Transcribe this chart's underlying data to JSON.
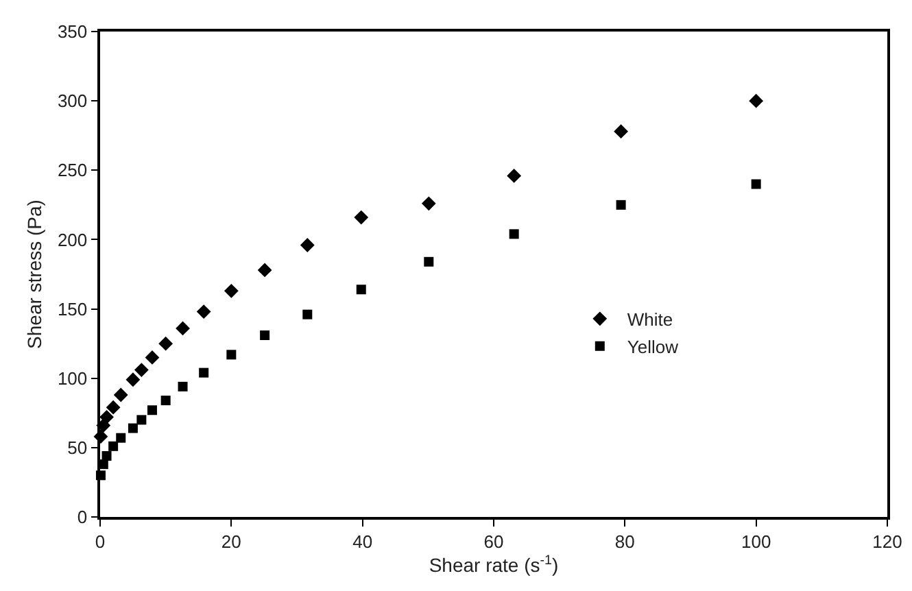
{
  "chart_data": {
    "type": "scatter",
    "xlabel": "Shear rate (s$^{-1}$)",
    "ylabel": "Shear stress (Pa)",
    "x": [
      0.1,
      0.501,
      1,
      2,
      3.16,
      5.01,
      6.31,
      7.94,
      10,
      12.6,
      15.8,
      20,
      25.1,
      31.6,
      39.8,
      50.1,
      63.1,
      79.4,
      100
    ],
    "series": [
      {
        "name": "White",
        "color": "#000000",
        "marker": "diamond",
        "values": [
          58,
          66,
          72,
          79,
          88,
          99,
          106,
          115,
          125,
          136,
          148,
          163,
          178,
          196,
          216,
          226,
          246,
          278,
          300
        ]
      },
      {
        "name": "Yellow",
        "color": "#000000",
        "marker": "square",
        "values": [
          30,
          38,
          44,
          51,
          57,
          64,
          70,
          77,
          84,
          94,
          104,
          117,
          131,
          146,
          164,
          184,
          204,
          225,
          240
        ]
      }
    ],
    "xlim": [
      0,
      120
    ],
    "xticks": [
      0,
      20,
      40,
      60,
      80,
      100,
      120
    ],
    "ylim": [
      0,
      350
    ],
    "yticks": [
      0,
      50,
      100,
      150,
      200,
      250,
      300,
      350
    ],
    "grid": false,
    "legend": "right"
  }
}
